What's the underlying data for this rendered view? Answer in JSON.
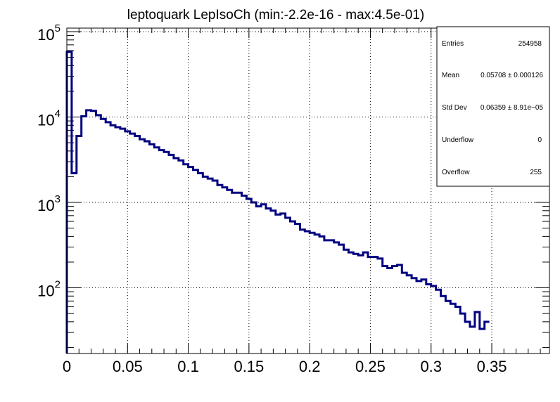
{
  "chart_data": {
    "type": "line",
    "style": "step-histogram",
    "title": "leptoquark LepIsoCh (min:-2.2e-16 - max:4.5e-01)",
    "xlabel": "",
    "ylabel": "",
    "xlim": [
      0,
      0.3975
    ],
    "ylim": [
      17,
      110000
    ],
    "yscale": "log",
    "grid": true,
    "line_color": "#000080",
    "x_ticks": [
      0,
      0.05,
      0.1,
      0.15,
      0.2,
      0.25,
      0.3,
      0.35
    ],
    "x_tick_labels": [
      "0",
      "0.05",
      "0.1",
      "0.15",
      "0.2",
      "0.25",
      "0.3",
      "0.35"
    ],
    "y_ticks": [
      {
        "value": 100,
        "base": "10",
        "exp": "2"
      },
      {
        "value": 1000,
        "base": "10",
        "exp": "3"
      },
      {
        "value": 10000,
        "base": "10",
        "exp": "4"
      },
      {
        "value": 100000,
        "base": "10",
        "exp": "5"
      }
    ],
    "bin_width": 0.004,
    "values": [
      58000,
      2200,
      6000,
      10200,
      12000,
      11800,
      10500,
      9500,
      8700,
      8000,
      7600,
      7300,
      6800,
      6400,
      6000,
      5500,
      5200,
      4800,
      4400,
      4100,
      3900,
      3600,
      3300,
      3100,
      2800,
      2600,
      2400,
      2200,
      2000,
      1900,
      1800,
      1600,
      1500,
      1400,
      1300,
      1300,
      1200,
      1100,
      1000,
      900,
      950,
      850,
      800,
      720,
      740,
      660,
      600,
      560,
      480,
      460,
      440,
      420,
      400,
      360,
      360,
      340,
      320,
      280,
      260,
      250,
      240,
      260,
      230,
      230,
      220,
      180,
      170,
      180,
      185,
      150,
      140,
      130,
      120,
      125,
      110,
      105,
      95,
      80,
      70,
      65,
      60,
      50,
      40,
      35,
      52,
      33,
      40
    ]
  },
  "stats_box": {
    "rows": [
      {
        "label": "Entries",
        "value": "254958"
      },
      {
        "label": "Mean",
        "value": "0.05708 ± 0.000126"
      },
      {
        "label": "Std Dev",
        "value": "0.06359 ± 8.91e−05"
      },
      {
        "label": "Underflow",
        "value": "0"
      },
      {
        "label": "Overflow",
        "value": "255"
      }
    ]
  }
}
